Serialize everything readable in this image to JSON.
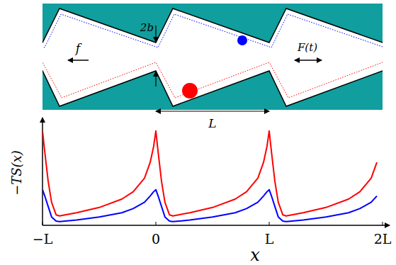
{
  "chart_data": {
    "type": "line",
    "x_label": "x",
    "y_label": "−TS(x)",
    "x": [
      -1,
      -0.98,
      -0.95,
      -0.92,
      -0.88,
      -0.85,
      -0.7,
      -0.5,
      -0.3,
      -0.2,
      -0.1,
      -0.05,
      -0.02,
      0,
      0.02,
      0.05,
      0.08,
      0.12,
      0.15,
      0.3,
      0.5,
      0.7,
      0.8,
      0.9,
      0.95,
      0.98,
      1,
      1.02,
      1.05,
      1.08,
      1.12,
      1.15,
      1.3,
      1.5,
      1.7,
      1.8,
      1.9,
      1.95
    ],
    "series": [
      {
        "color": "#ff0000",
        "values": [
          0.9,
          0.7,
          0.42,
          0.22,
          0.1,
          0.09,
          0.12,
          0.17,
          0.25,
          0.32,
          0.45,
          0.6,
          0.75,
          0.9,
          0.7,
          0.42,
          0.22,
          0.1,
          0.09,
          0.12,
          0.17,
          0.25,
          0.32,
          0.45,
          0.6,
          0.75,
          0.9,
          0.7,
          0.42,
          0.22,
          0.1,
          0.09,
          0.12,
          0.17,
          0.25,
          0.32,
          0.45,
          0.6
        ]
      },
      {
        "color": "#0000ff",
        "values": [
          0.34,
          0.28,
          0.18,
          0.08,
          0.04,
          0.035,
          0.05,
          0.08,
          0.12,
          0.16,
          0.22,
          0.28,
          0.32,
          0.34,
          0.28,
          0.18,
          0.08,
          0.04,
          0.035,
          0.05,
          0.08,
          0.12,
          0.16,
          0.22,
          0.28,
          0.32,
          0.34,
          0.28,
          0.18,
          0.08,
          0.04,
          0.035,
          0.05,
          0.08,
          0.12,
          0.16,
          0.22,
          0.28
        ]
      }
    ],
    "xlim": [
      -1,
      2
    ],
    "ylim": [
      0,
      1
    ],
    "xticks": [
      {
        "value": -1,
        "label": "−L"
      },
      0,
      {
        "value": 1,
        "label": "L"
      },
      {
        "value": 2,
        "label": "2L"
      }
    ],
    "tick_labels": "x",
    "grid": false
  },
  "schematic": {
    "gap_label": "2b",
    "force_label": "f",
    "drive_label": "F(t)",
    "period_label": "L"
  }
}
